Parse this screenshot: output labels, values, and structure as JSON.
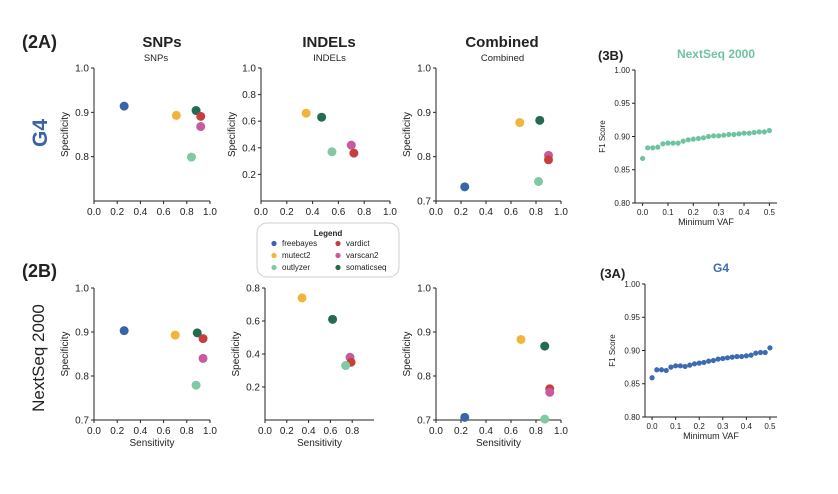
{
  "colors": {
    "freebayes": "#3a63a8",
    "mutect2": "#f0b63b",
    "outlyzer": "#7fc9a4",
    "vardict": "#c5403c",
    "varscan2": "#c65c9f",
    "somaticseq": "#246b4f",
    "nextseq_series": "#6fc4a0",
    "g4_series": "#3d6bb3",
    "axis": "#222222"
  },
  "labels": {
    "panel_2a": "(2A)",
    "panel_2b": "(2B)",
    "panel_3b": "(3B)",
    "panel_3a": "(3A)",
    "row_g4": "G4",
    "row_nextseq": "NextSeq 2000",
    "col_snps": "SNPs",
    "col_indels": "INDELs",
    "col_combined": "Combined"
  },
  "legend": {
    "title": "Legend",
    "entries": [
      {
        "name": "freebayes",
        "color": "#3a63a8"
      },
      {
        "name": "vardict",
        "color": "#c5403c"
      },
      {
        "name": "mutect2",
        "color": "#f0b63b"
      },
      {
        "name": "varscan2",
        "color": "#c65c9f"
      },
      {
        "name": "outlyzer",
        "color": "#7fc9a4"
      },
      {
        "name": "somaticseq",
        "color": "#246b4f"
      }
    ]
  },
  "chart_data": [
    {
      "id": "g4-snps",
      "type": "scatter",
      "title": "SNPs",
      "xlabel": "",
      "ylabel": "Specificity",
      "xlim": [
        0,
        1
      ],
      "ylim": [
        0.7,
        1.0
      ],
      "xticks": [
        "0.0",
        "0.2",
        "0.4",
        "0.6",
        "0.8",
        "1.0"
      ],
      "yticks": [
        "0.8",
        "0.9",
        "1.0"
      ],
      "points": [
        {
          "tool": "freebayes",
          "x": 0.26,
          "y": 0.914
        },
        {
          "tool": "mutect2",
          "x": 0.71,
          "y": 0.893
        },
        {
          "tool": "somaticseq",
          "x": 0.88,
          "y": 0.904
        },
        {
          "tool": "vardict",
          "x": 0.92,
          "y": 0.891
        },
        {
          "tool": "varscan2",
          "x": 0.92,
          "y": 0.868
        },
        {
          "tool": "outlyzer",
          "x": 0.84,
          "y": 0.799
        }
      ]
    },
    {
      "id": "g4-indels",
      "type": "scatter",
      "title": "INDELs",
      "xlabel": "",
      "ylabel": "Specificity",
      "xlim": [
        0,
        1
      ],
      "ylim": [
        0,
        1.0
      ],
      "xticks": [
        "0.0",
        "0.2",
        "0.4",
        "0.6",
        "0.8",
        "1.0"
      ],
      "yticks": [
        "0.2",
        "0.4",
        "0.6",
        "0.8",
        "1.0"
      ],
      "points": [
        {
          "tool": "mutect2",
          "x": 0.35,
          "y": 0.66
        },
        {
          "tool": "somaticseq",
          "x": 0.47,
          "y": 0.63
        },
        {
          "tool": "varscan2",
          "x": 0.7,
          "y": 0.42
        },
        {
          "tool": "outlyzer",
          "x": 0.55,
          "y": 0.37
        },
        {
          "tool": "vardict",
          "x": 0.72,
          "y": 0.36
        }
      ]
    },
    {
      "id": "g4-combined",
      "type": "scatter",
      "title": "Combined",
      "xlabel": "",
      "ylabel": "Specificity",
      "xlim": [
        0,
        1
      ],
      "ylim": [
        0.7,
        1.0
      ],
      "xticks": [
        "0.0",
        "0.2",
        "0.4",
        "0.6",
        "0.8",
        "1.0"
      ],
      "yticks": [
        "0.7",
        "0.8",
        "0.9",
        "1.0"
      ],
      "points": [
        {
          "tool": "freebayes",
          "x": 0.23,
          "y": 0.732
        },
        {
          "tool": "mutect2",
          "x": 0.67,
          "y": 0.877
        },
        {
          "tool": "somaticseq",
          "x": 0.83,
          "y": 0.882
        },
        {
          "tool": "varscan2",
          "x": 0.9,
          "y": 0.803
        },
        {
          "tool": "vardict",
          "x": 0.9,
          "y": 0.793
        },
        {
          "tool": "outlyzer",
          "x": 0.82,
          "y": 0.744
        }
      ]
    },
    {
      "id": "nextseq-snps",
      "type": "scatter",
      "title": "",
      "xlabel": "Sensitivity",
      "ylabel": "Specificity",
      "xlim": [
        0,
        1
      ],
      "ylim": [
        0.7,
        1.0
      ],
      "xticks": [
        "0.0",
        "0.2",
        "0.4",
        "0.6",
        "0.8",
        "1.0"
      ],
      "yticks": [
        "0.7",
        "0.8",
        "0.9",
        "1.0"
      ],
      "points": [
        {
          "tool": "freebayes",
          "x": 0.26,
          "y": 0.903
        },
        {
          "tool": "mutect2",
          "x": 0.7,
          "y": 0.893
        },
        {
          "tool": "somaticseq",
          "x": 0.89,
          "y": 0.898
        },
        {
          "tool": "vardict",
          "x": 0.94,
          "y": 0.885
        },
        {
          "tool": "varscan2",
          "x": 0.94,
          "y": 0.84
        },
        {
          "tool": "outlyzer",
          "x": 0.88,
          "y": 0.779
        }
      ]
    },
    {
      "id": "nextseq-indels",
      "type": "scatter",
      "title": "",
      "xlabel": "Sensitivity",
      "ylabel": "Specificity",
      "xlim": [
        0,
        1
      ],
      "ylim": [
        0,
        0.8
      ],
      "xticks": [
        "0.0",
        "0.2",
        "0.4",
        "0.6",
        "0.8"
      ],
      "yticks": [
        "0.2",
        "0.4",
        "0.6",
        "0.8"
      ],
      "points": [
        {
          "tool": "mutect2",
          "x": 0.34,
          "y": 0.74
        },
        {
          "tool": "somaticseq",
          "x": 0.62,
          "y": 0.61
        },
        {
          "tool": "varscan2",
          "x": 0.78,
          "y": 0.38
        },
        {
          "tool": "vardict",
          "x": 0.79,
          "y": 0.35
        },
        {
          "tool": "outlyzer",
          "x": 0.74,
          "y": 0.33
        }
      ]
    },
    {
      "id": "nextseq-combined",
      "type": "scatter",
      "title": "",
      "xlabel": "Sensitivity",
      "ylabel": "Specificity",
      "xlim": [
        0,
        1
      ],
      "ylim": [
        0.7,
        1.0
      ],
      "xticks": [
        "0.0",
        "0.2",
        "0.4",
        "0.6",
        "0.8",
        "1.0"
      ],
      "yticks": [
        "0.7",
        "0.8",
        "0.9",
        "1.0"
      ],
      "points": [
        {
          "tool": "freebayes",
          "x": 0.23,
          "y": 0.706
        },
        {
          "tool": "mutect2",
          "x": 0.68,
          "y": 0.883
        },
        {
          "tool": "somaticseq",
          "x": 0.87,
          "y": 0.868
        },
        {
          "tool": "vardict",
          "x": 0.91,
          "y": 0.771
        },
        {
          "tool": "varscan2",
          "x": 0.91,
          "y": 0.763
        },
        {
          "tool": "outlyzer",
          "x": 0.87,
          "y": 0.702
        }
      ]
    },
    {
      "id": "f1-nextseq",
      "type": "scatter",
      "title": "NextSeq 2000",
      "xlabel": "Minimum VAF",
      "ylabel": "F1 Score",
      "xlim": [
        -0.03,
        0.53
      ],
      "ylim": [
        0.8,
        1.0
      ],
      "xticks": [
        "0.0",
        "0.1",
        "0.2",
        "0.3",
        "0.4",
        "0.5"
      ],
      "yticks": [
        "0.80",
        "0.85",
        "0.90",
        "0.95",
        "1.00"
      ],
      "series_color": "nextseq_series",
      "x": [
        0.0,
        0.02,
        0.04,
        0.06,
        0.08,
        0.1,
        0.12,
        0.14,
        0.16,
        0.18,
        0.2,
        0.22,
        0.24,
        0.26,
        0.28,
        0.3,
        0.32,
        0.34,
        0.36,
        0.38,
        0.4,
        0.42,
        0.44,
        0.46,
        0.48,
        0.5
      ],
      "y": [
        0.867,
        0.883,
        0.883,
        0.884,
        0.889,
        0.89,
        0.89,
        0.89,
        0.893,
        0.895,
        0.896,
        0.897,
        0.898,
        0.9,
        0.901,
        0.901,
        0.902,
        0.903,
        0.903,
        0.904,
        0.905,
        0.905,
        0.906,
        0.907,
        0.907,
        0.909
      ]
    },
    {
      "id": "f1-g4",
      "type": "scatter",
      "title": "G4",
      "xlabel": "Minimum VAF",
      "ylabel": "F1 Score",
      "xlim": [
        -0.03,
        0.53
      ],
      "ylim": [
        0.8,
        1.0
      ],
      "xticks": [
        "0.0",
        "0.1",
        "0.2",
        "0.3",
        "0.4",
        "0.5"
      ],
      "yticks": [
        "0.80",
        "0.85",
        "0.90",
        "0.95",
        "1.00"
      ],
      "series_color": "g4_series",
      "x": [
        0.0,
        0.02,
        0.04,
        0.06,
        0.08,
        0.1,
        0.12,
        0.14,
        0.16,
        0.18,
        0.2,
        0.22,
        0.24,
        0.26,
        0.28,
        0.3,
        0.32,
        0.34,
        0.36,
        0.38,
        0.4,
        0.42,
        0.44,
        0.46,
        0.48,
        0.5
      ],
      "y": [
        0.859,
        0.871,
        0.871,
        0.87,
        0.875,
        0.877,
        0.877,
        0.876,
        0.878,
        0.88,
        0.881,
        0.882,
        0.884,
        0.885,
        0.887,
        0.888,
        0.889,
        0.89,
        0.891,
        0.891,
        0.892,
        0.893,
        0.896,
        0.897,
        0.897,
        0.904
      ]
    }
  ]
}
